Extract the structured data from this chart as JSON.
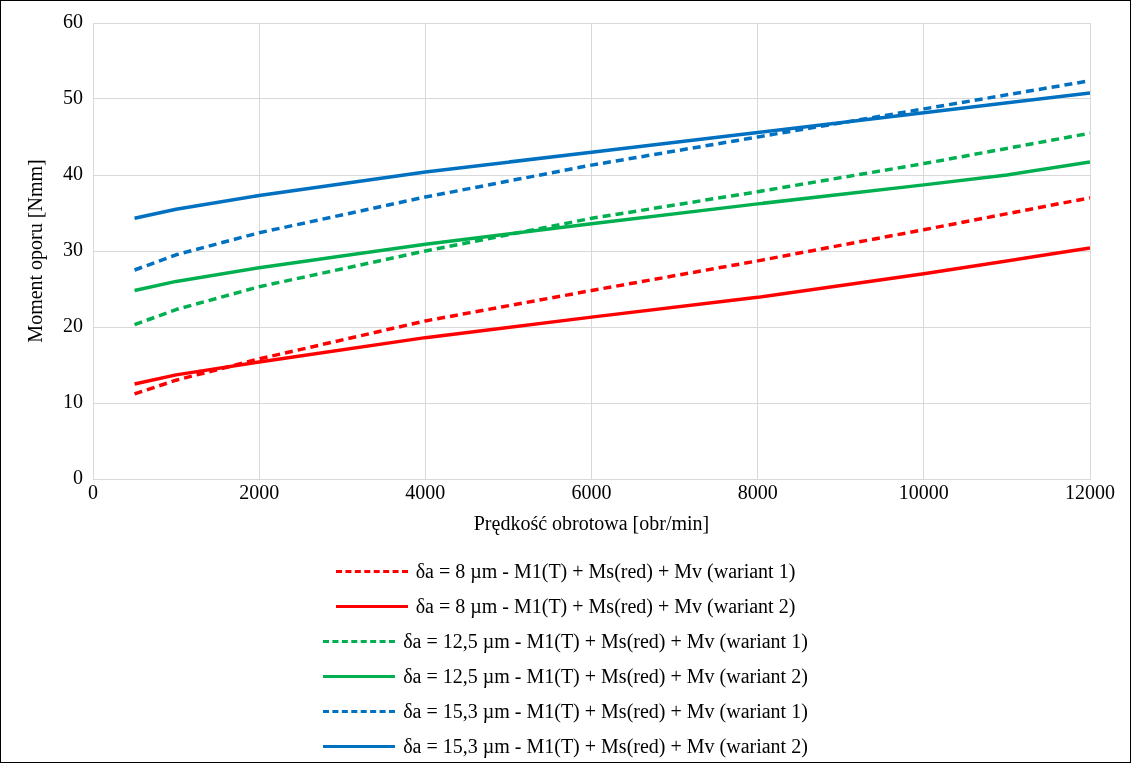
{
  "chart_data": {
    "type": "line",
    "xlabel": "Prędkość obrotowa [obr/min]",
    "ylabel": "Moment oporu [Nmm]",
    "xlim": [
      0,
      12000
    ],
    "xticks": [
      0,
      2000,
      4000,
      6000,
      8000,
      10000,
      12000
    ],
    "ylim": [
      0,
      60
    ],
    "yticks": [
      0,
      10,
      20,
      30,
      40,
      50,
      60
    ],
    "grid": true,
    "legend": "bottom",
    "marker": "none",
    "x": [
      500,
      1000,
      2000,
      4000,
      6000,
      8000,
      10000,
      12000
    ],
    "series": [
      {
        "name": "δa = 8 µm - M1(T) + Ms(red) + Mv (wariant 1)",
        "color": "#ff0000",
        "line_style": "dashed",
        "values": [
          11.2,
          13,
          15.8,
          20.8,
          24.8,
          28.7,
          32.8,
          37
        ]
      },
      {
        "name": "δa = 8 µm - M1(T) + Ms(red) + Mv (wariant 2)",
        "color": "#ff0000",
        "line_style": "solid",
        "values": [
          12.5,
          13.7,
          15.4,
          18.6,
          21.3,
          23.9,
          27,
          30.4
        ]
      },
      {
        "name": "δa = 12,5 µm - M1(T) + Ms(red) + Mv (wariant 1)",
        "color": "#00b050",
        "line_style": "dashed",
        "values": [
          20.3,
          22.3,
          25.3,
          30,
          34.3,
          37.8,
          41.5,
          45.5
        ]
      },
      {
        "name": "δa = 12,5 µm - M1(T) + Ms(red) + Mv (wariant 2)",
        "color": "#00b050",
        "line_style": "solid",
        "x": [
          500,
          1000,
          2000,
          4000,
          6000,
          8000,
          10000,
          11000,
          12000
        ],
        "values": [
          24.8,
          26,
          27.8,
          30.9,
          33.6,
          36.2,
          38.7,
          40,
          41.7
        ]
      },
      {
        "name": "δa = 15,3 µm - M1(T) + Ms(red) + Mv (wariant 1)",
        "color": "#0070c0",
        "line_style": "dashed",
        "values": [
          27.5,
          29.5,
          32.4,
          37.1,
          41.3,
          45,
          48.7,
          52.4
        ]
      },
      {
        "name": "δa = 15,3 µm - M1(T) + Ms(red) + Mv (wariant 2)",
        "color": "#0070c0",
        "line_style": "solid",
        "values": [
          34.3,
          35.5,
          37.3,
          40.4,
          43,
          45.6,
          48.2,
          50.8
        ]
      }
    ]
  }
}
